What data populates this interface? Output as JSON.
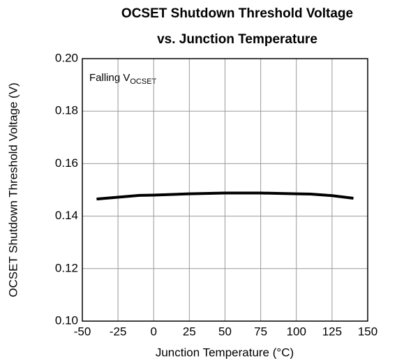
{
  "chart_data": {
    "type": "line",
    "title": [
      "OCSET Shutdown Threshold Voltage",
      "vs. Junction Temperature"
    ],
    "xlabel": "Junction Temperature (°C)",
    "ylabel": "OCSET Shutdown Threshold Voltage (V)",
    "annotation": {
      "text": "Falling V",
      "subscript": "OCSET"
    },
    "x": [
      -40,
      -25,
      -10,
      0,
      25,
      50,
      75,
      100,
      110,
      125,
      140
    ],
    "series": [
      {
        "color": "#000000",
        "values": [
          0.1465,
          0.1472,
          0.1479,
          0.148,
          0.1485,
          0.1488,
          0.1488,
          0.1485,
          0.1484,
          0.1478,
          0.1468
        ]
      }
    ],
    "xlim": [
      -50,
      150
    ],
    "xticks": [
      -50,
      -25,
      0,
      25,
      50,
      75,
      100,
      125,
      150
    ],
    "ylim": [
      0.1,
      0.2
    ],
    "yticks": [
      {
        "value": 0.1,
        "label": "0.10"
      },
      0.12,
      0.14,
      0.16,
      0.18,
      {
        "value": 0.2,
        "label": "0.20"
      }
    ],
    "grid": true
  }
}
